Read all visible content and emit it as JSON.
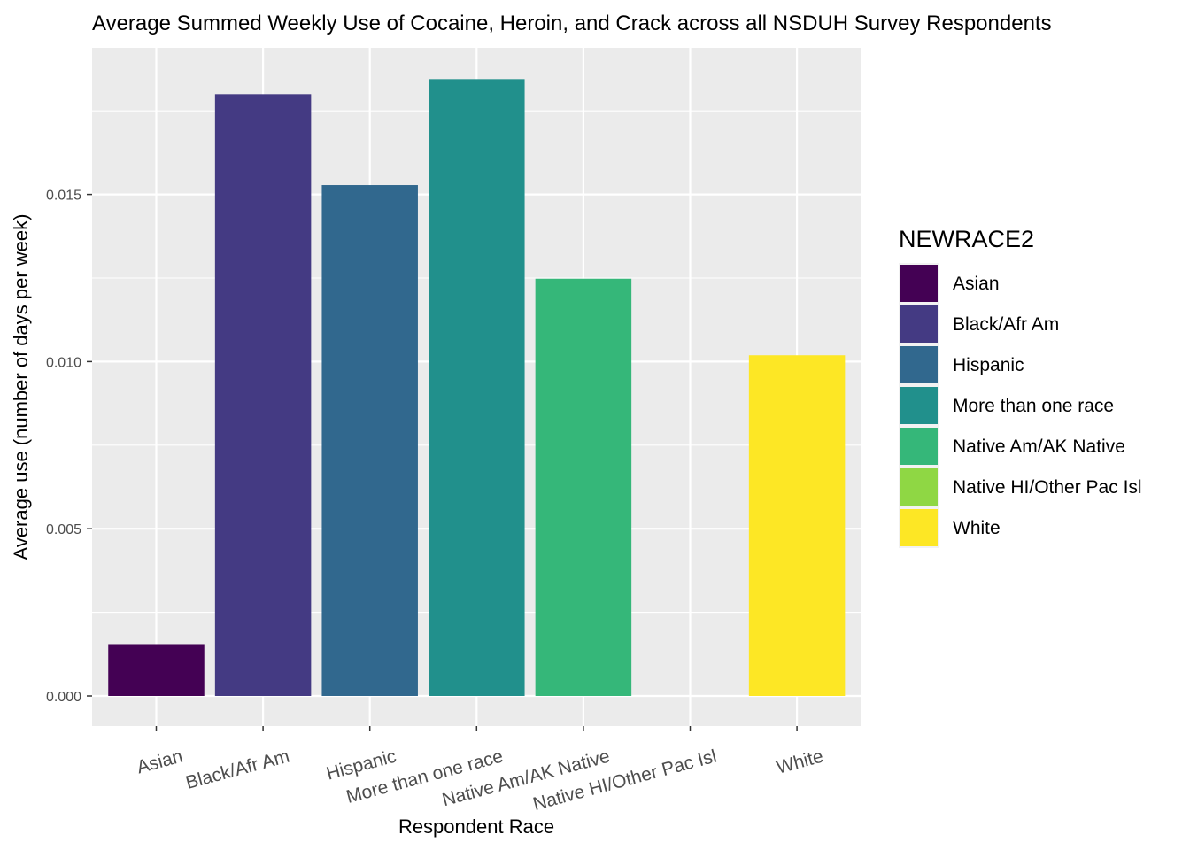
{
  "chart_data": {
    "type": "bar",
    "title": "Average Summed Weekly Use of Cocaine, Heroin, and Crack across all NSDUH Survey Respondents",
    "xlabel": "Respondent Race",
    "ylabel": "Average use (number of days per week)",
    "categories": [
      "Asian",
      "Black/Afr Am",
      "Hispanic",
      "More than one race",
      "Native Am/AK Native",
      "Native HI/Other Pac Isl",
      "White"
    ],
    "values": [
      0.00155,
      0.018,
      0.01528,
      0.01845,
      0.01248,
      0.0,
      0.01019
    ],
    "colors": [
      "#440154",
      "#443A83",
      "#31688E",
      "#21908C",
      "#35B779",
      "#8FD744",
      "#FDE725"
    ],
    "ylim": [
      -0.00088,
      0.01955
    ],
    "y_ticks": [
      "0.000",
      "0.005",
      "0.010",
      "0.015"
    ],
    "y_tick_values": [
      0.0,
      0.005,
      0.01,
      0.015
    ],
    "grid": true,
    "legend": {
      "title": "NEWRACE2",
      "placement": "right",
      "entries": [
        "Asian",
        "Black/Afr Am",
        "Hispanic",
        "More than one race",
        "Native Am/AK Native",
        "Native HI/Other Pac Isl",
        "White"
      ]
    },
    "colors_theme": {
      "panel_bg": "#EBEBEB",
      "grid": "#FFFFFF"
    }
  }
}
